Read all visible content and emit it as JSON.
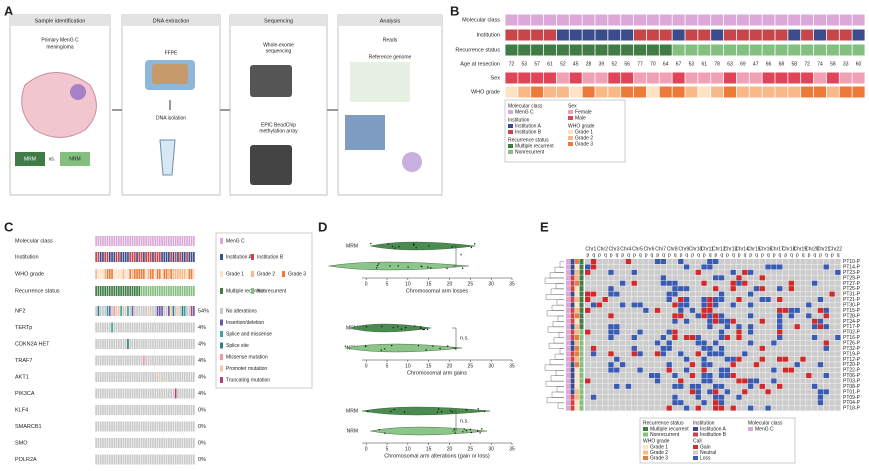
{
  "panels": {
    "a": {
      "label": "A",
      "steps": [
        {
          "title": "Sample identification",
          "lines": [
            "Primary MenG C",
            "meningioma"
          ]
        },
        {
          "title": "DNA extraction",
          "lines": [
            "FFPE",
            "DNA isolation"
          ]
        },
        {
          "title": "Sequencing",
          "lines": [
            "Whole-exome",
            "sequencing",
            "EPIC BeadChip",
            "methylation array"
          ]
        },
        {
          "title": "Analysis",
          "lines": [
            "Reads",
            "Reference genome"
          ]
        }
      ],
      "mrm": "MRM",
      "vs": "vs.",
      "nrm": "NRM"
    },
    "b": {
      "label": "B",
      "rows": [
        "Molecular class",
        "Institution",
        "Recurrence status",
        "Age at resection",
        "Sex",
        "WHO grade"
      ],
      "ages": [
        "72",
        "53",
        "57",
        "61",
        "52",
        "45",
        "28",
        "39",
        "52",
        "56",
        "77",
        "70",
        "64",
        "67",
        "53",
        "61",
        "78",
        "63",
        "69",
        "47",
        "66",
        "68",
        "58",
        "72",
        "74",
        "58",
        "33",
        "60"
      ],
      "legend": [
        {
          "title": "Molecular class",
          "items": [
            {
              "label": "MenG C",
              "color": "#dba8d8"
            }
          ]
        },
        {
          "title": "Institution",
          "items": [
            {
              "label": "Institution A",
              "color": "#3b4c8c"
            },
            {
              "label": "Institution B",
              "color": "#c8464a"
            }
          ]
        },
        {
          "title": "Recurrence status",
          "items": [
            {
              "label": "Multiple recurrent",
              "color": "#3f7c46"
            },
            {
              "label": "Nonrecurrent",
              "color": "#83c07f"
            }
          ]
        },
        {
          "title": "Sex",
          "items": [
            {
              "label": "Female",
              "color": "#f2a0b4"
            },
            {
              "label": "Male",
              "color": "#e04458"
            }
          ]
        },
        {
          "title": "WHO grade",
          "items": [
            {
              "label": "Grade 1",
              "color": "#fde2c4"
            },
            {
              "label": "Grade 2",
              "color": "#f8b888"
            },
            {
              "label": "Grade 3",
              "color": "#ee7a3a"
            }
          ]
        }
      ]
    },
    "c": {
      "label": "C",
      "rows": [
        "Molecular class",
        "Institution",
        "WHO grade",
        "Recurrence status"
      ],
      "genes": [
        {
          "name": "NF2",
          "pct": "54%"
        },
        {
          "name": "TERTp",
          "pct": "4%"
        },
        {
          "name": "CDKN2A HET",
          "pct": "4%"
        },
        {
          "name": "TRAF7",
          "pct": "4%"
        },
        {
          "name": "AKT1",
          "pct": "4%"
        },
        {
          "name": "PIK3CA",
          "pct": "4%"
        },
        {
          "name": "KLF4",
          "pct": "0%"
        },
        {
          "name": "SMARCB1",
          "pct": "0%"
        },
        {
          "name": "SMO",
          "pct": "0%"
        },
        {
          "name": "POLR2A",
          "pct": "0%"
        }
      ],
      "mutations": [
        {
          "label": "No alterations",
          "color": "#c9c9c9"
        },
        {
          "label": "Insertion/deletion",
          "color": "#6d5aa6"
        },
        {
          "label": "Splice and missense",
          "color": "#3aa3a6"
        },
        {
          "label": "Splice site",
          "color": "#2b7f8c"
        },
        {
          "label": "Missense mutation",
          "color": "#eb9aa6"
        },
        {
          "label": "Promoter mutation",
          "color": "#f5c8a4"
        },
        {
          "label": "Truncating mutation",
          "color": "#b3407e"
        }
      ]
    },
    "d": {
      "label": "D",
      "groups": [
        "MRM",
        "NRM"
      ],
      "xlim": [
        -1,
        35
      ],
      "xticks": [
        0,
        5,
        10,
        15,
        20,
        25,
        30,
        35
      ],
      "plots": [
        {
          "xlabel": "Chromosomal arm losses",
          "sig": "*"
        },
        {
          "xlabel": "Chromosomal arm gains",
          "sig": "n.s."
        },
        {
          "xlabel": "Chromosomal arm alterations (gain or loss)",
          "sig": "n.s."
        }
      ]
    },
    "e": {
      "label": "E",
      "chromosomes": [
        "Chr1",
        "Chr2",
        "Chr3",
        "Chr4",
        "Chr5",
        "Chr6",
        "Chr7",
        "Chr8",
        "Chr9",
        "Chr10",
        "Chr11",
        "Chr12",
        "Chr13",
        "Chr14",
        "Chr15",
        "Chr16",
        "Chr17",
        "Chr18",
        "Chr19",
        "Chr20",
        "Chr21",
        "Chr22"
      ],
      "arms": [
        "p",
        "q"
      ],
      "samples": [
        "PT10-P",
        "PT14-P",
        "PT23-P",
        "PT29-P",
        "PT27-P",
        "PT25-P",
        "PT31-P",
        "PT21-P",
        "PT30-P",
        "PT15-P",
        "PT28-P",
        "PT24-P",
        "PT17-P",
        "PT02-P",
        "PT16-P",
        "PT26-P",
        "PT32-P",
        "PT19-P",
        "PT12-P",
        "PT20-P",
        "PT22-P",
        "PT06-P",
        "PT03-P",
        "PT08-P",
        "PT01-P",
        "PT09-P",
        "PT04-P",
        "PT18-P"
      ],
      "call_title": "Call",
      "calls": [
        {
          "label": "Gain",
          "color": "#d02a2a"
        },
        {
          "label": "Neutral",
          "color": "#cccccc"
        },
        {
          "label": "Loss",
          "color": "#3a5bb2"
        }
      ]
    }
  }
}
